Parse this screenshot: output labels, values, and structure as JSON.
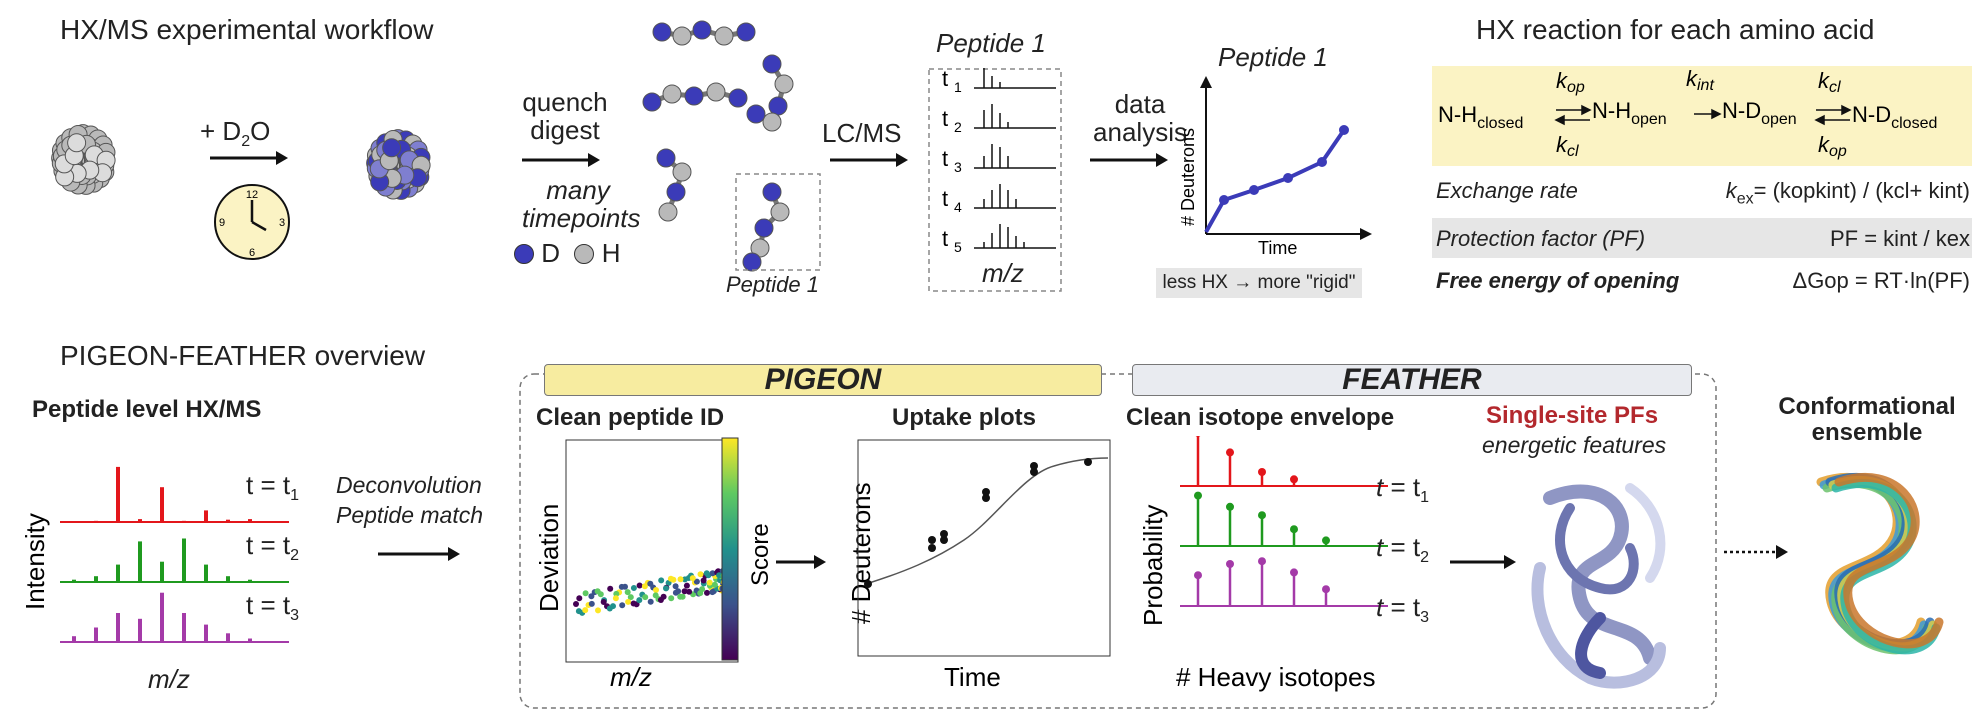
{
  "workflow": {
    "title": "HX/MS experimental workflow",
    "d2o_label": "+ D",
    "d2o_sub": "2",
    "d2o_tail": "O",
    "clock_numbers": [
      "12",
      "3",
      "6",
      "9"
    ],
    "quench_line1": "quench",
    "quench_line2": "digest",
    "timepoints_line1": "many",
    "timepoints_line2": "timepoints",
    "legend_d": "D",
    "legend_h": "H",
    "peptide_label": "Peptide 1",
    "lcms_label": "LC/MS",
    "spectra_title": "Peptide 1",
    "spectra_rows": [
      "t",
      "t",
      "t",
      "t",
      "t"
    ],
    "spectra_subs": [
      "1",
      "2",
      "3",
      "4",
      "5"
    ],
    "mz_label": "m/z",
    "data_line1": "data",
    "data_line2": "analysis",
    "uptake_title": "Peptide 1",
    "uptake_ylabel": "# Deuterons",
    "uptake_xlabel": "Time",
    "rigid_note": "less HX → more \"rigid\""
  },
  "hx_reaction": {
    "title": "HX reaction for each amino acid",
    "species": [
      "N-H",
      "N-H",
      "N-D",
      "N-D"
    ],
    "species_subs": [
      "closed",
      "open",
      "open",
      "closed"
    ],
    "rate_top": [
      "k",
      "k",
      "k"
    ],
    "rate_top_subs": [
      "op",
      "int",
      "cl"
    ],
    "rate_bottom": [
      "k",
      "k"
    ],
    "rate_bottom_subs": [
      "cl",
      "op"
    ],
    "exchange_label": "Exchange rate",
    "exchange_formula": "k",
    "exchange_sub": "ex",
    "exchange_rhs": "= (kopkint) / (kcl+ kint)",
    "pf_label": "Protection factor (PF)",
    "pf_formula": "PF = kint / kex",
    "free_energy_label": "Free energy of opening",
    "free_energy_formula": "ΔGop = RT·ln(PF)"
  },
  "overview": {
    "title": "PIGEON-FEATHER overview",
    "peptide_level": "Peptide level HX/MS",
    "intensity": "Intensity",
    "mz": "m/z",
    "time_labels": [
      "t = t",
      "t = t",
      "t = t"
    ],
    "time_subs": [
      "1",
      "2",
      "3"
    ],
    "deconv_line1": "Deconvolution",
    "deconv_line2": "Peptide match",
    "pigeon": "PIGEON",
    "feather": "FEATHER",
    "clean_id": "Clean peptide ID",
    "deviation": "Deviation",
    "score": "Score",
    "uptake_plots": "Uptake plots",
    "uptake_ylabel": "# Deuterons",
    "uptake_xlabel": "Time",
    "clean_env": "Clean isotope envelope",
    "probability": "Probability",
    "heavy": "# Heavy isotopes",
    "single_site": "Single-site PFs",
    "energetic": "energetic features",
    "conformational_line1": "Conformational",
    "conformational_line2": "ensemble"
  },
  "colors": {
    "deuterium": "#3b3bb8",
    "hydrogen": "#b9b9b9",
    "yellow_box": "#fbf3c4",
    "pigeon_chip": "#f7eca0",
    "feather_chip": "#e9ebf0",
    "t1": "#e3161b",
    "t2": "#1f9a1f",
    "t3": "#a43aa8",
    "single_site_red": "#b3282d"
  }
}
